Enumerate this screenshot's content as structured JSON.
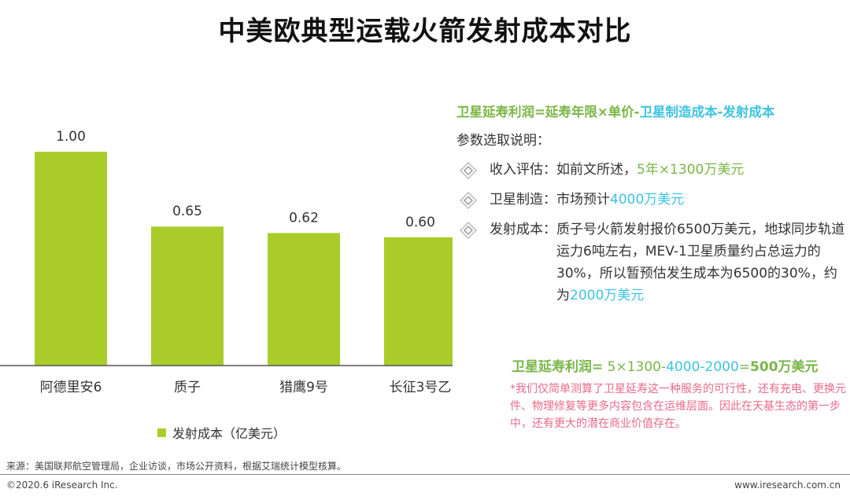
{
  "title": "中美欧典型运载火箭发射成本对比",
  "chart_data": {
    "type": "bar",
    "categories": [
      "阿德里安6",
      "质子",
      "猎鹰9号",
      "长征3号乙"
    ],
    "series": [
      {
        "name": "发射成本（亿美元）",
        "values": [
          1.0,
          0.65,
          0.62,
          0.6
        ]
      }
    ],
    "value_labels": [
      "1.00",
      "0.65",
      "0.62",
      "0.60"
    ],
    "ylim": [
      0,
      1.0
    ],
    "grid": false,
    "legend_position": "bottom",
    "bar_color": "#a9cc2b"
  },
  "formula": {
    "part1": "卫星延寿利润=延寿年限×单价-",
    "part2": "卫星制造成本-",
    "part3": "发射成本"
  },
  "params_title": "参数选取说明：",
  "params": [
    {
      "label": "收入评估：",
      "text": "如前文所述，",
      "highlight": "5年×1300万美元"
    },
    {
      "label": "卫星制造：",
      "text": "市场预计",
      "highlight": "4000万美元"
    },
    {
      "label": "发射成本：",
      "text": "质子号火箭发射报价6500万美元，地球同步轨道运力6吨左右，MEV-1卫星质量约占总运力的30%，所以暂预估发生成本为6500的30%，约为",
      "highlight": "2000万美元"
    }
  ],
  "result": {
    "label": "卫星延寿利润=",
    "expr1": " 5×1300-",
    "expr2": "4000-2000",
    "expr3": "=",
    "total": "500万美元"
  },
  "note": "*我们仅简单测算了卫星延寿这一种服务的可行性，还有充电、更换元件、物理修复等更多内容包含在运维层面。因此在天基生态的第一步中，还有更大的潜在商业价值存在。",
  "source": "来源：美国联邦航空管理局，企业访谈，市场公开资料，根据艾瑞统计模型核算。",
  "footer_left": "©2020.6 iResearch Inc.",
  "footer_right": "www.iresearch.com.cn",
  "icon": "diamond-bullet-icon"
}
